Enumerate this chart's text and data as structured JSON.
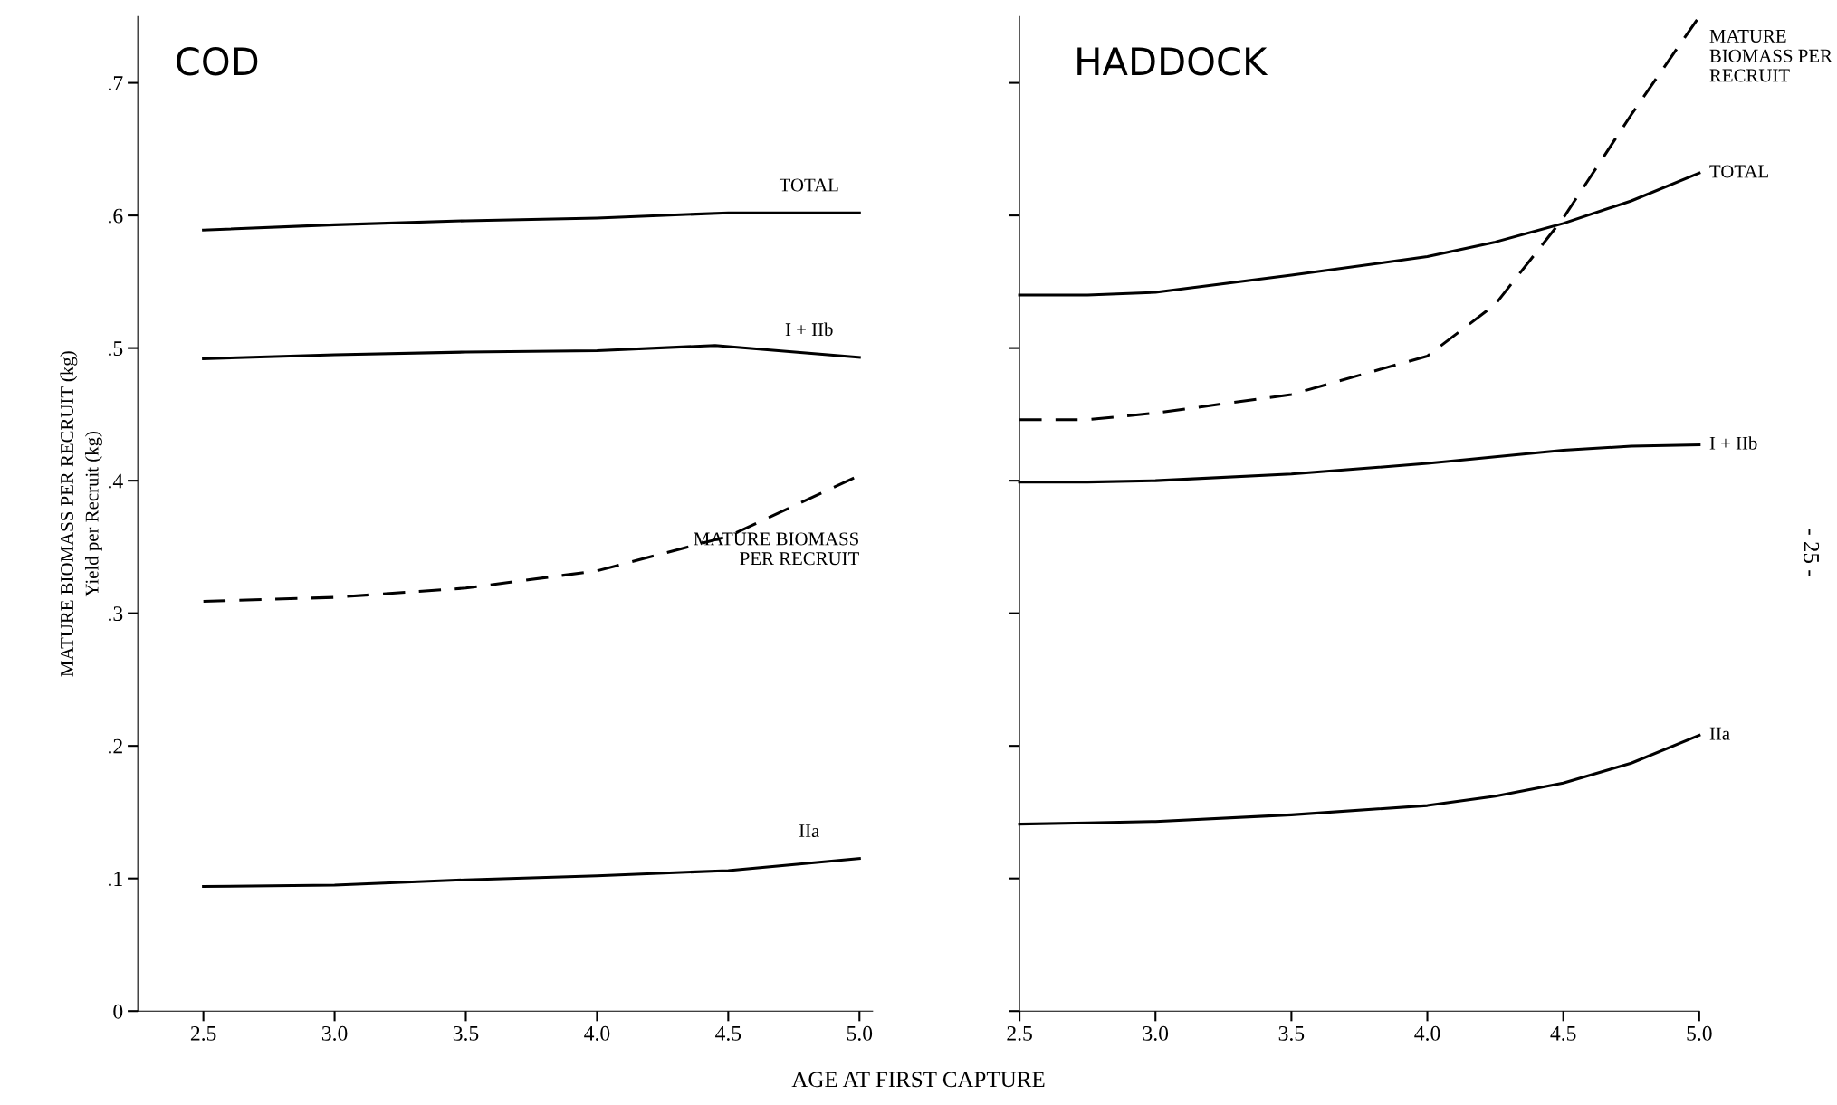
{
  "chart_data": [
    {
      "type": "line",
      "title": "COD",
      "xlabel": "AGE AT FIRST CAPTURE",
      "ylabel": "MATURE BIOMASS PER RECRUIT (kg)\nYield per Recruit (kg)",
      "x": [
        2.5,
        3.0,
        3.5,
        4.0,
        4.5,
        5.0
      ],
      "xlim": [
        2.25,
        5.05
      ],
      "xticks": [
        2.5,
        {
          "value": 3,
          "label": "3.0"
        },
        3.5,
        {
          "value": 4,
          "label": "4.0"
        },
        4.5,
        {
          "value": 5,
          "label": "5.0"
        }
      ],
      "ylim": [
        0,
        0.75
      ],
      "yticks": [
        {
          "value": 0,
          "label": "0"
        },
        {
          "value": 0.1,
          "label": ".1"
        },
        {
          "value": 0.2,
          "label": ".2"
        },
        {
          "value": 0.3,
          "label": ".3"
        },
        {
          "value": 0.4,
          "label": ".4"
        },
        {
          "value": 0.5,
          "label": ".5"
        },
        {
          "value": 0.6,
          "label": ".6"
        },
        {
          "value": 0.7,
          "label": ".7"
        }
      ],
      "grid": false,
      "series": [
        {
          "name": "TOTAL",
          "color": "#000000",
          "line_style": "solid",
          "values": [
            0.589,
            0.593,
            0.596,
            0.598,
            0.602,
            0.602
          ]
        },
        {
          "name": "I + IIb",
          "color": "#000000",
          "line_style": "solid",
          "x": [
            2.5,
            3.0,
            3.5,
            4.0,
            4.45,
            5.0
          ],
          "values": [
            0.492,
            0.495,
            0.497,
            0.498,
            0.502,
            0.493
          ]
        },
        {
          "name": "MATURE BIOMASS\nPER RECRUIT",
          "color": "#000000",
          "line_style": "dashed",
          "values": [
            0.309,
            0.312,
            0.319,
            0.332,
            0.358,
            0.404
          ]
        },
        {
          "name": "IIa",
          "color": "#000000",
          "line_style": "solid",
          "values": [
            0.094,
            0.095,
            0.099,
            0.102,
            0.106,
            0.115
          ]
        }
      ]
    },
    {
      "type": "line",
      "title": "HADDOCK",
      "x": [
        2.5,
        2.75,
        3.0,
        3.5,
        4.0,
        4.25,
        4.5,
        4.75,
        5.0
      ],
      "xlim": [
        2.5,
        5.0
      ],
      "xticks": [
        2.5,
        {
          "value": 3,
          "label": "3.0"
        },
        3.5,
        {
          "value": 4,
          "label": "4.0"
        },
        4.5,
        {
          "value": 5,
          "label": "5.0"
        }
      ],
      "ylim": [
        0,
        0.75
      ],
      "yticks": [
        {
          "value": 0,
          "label": null
        },
        {
          "value": 0.1,
          "label": null
        },
        {
          "value": 0.2,
          "label": null
        },
        {
          "value": 0.3,
          "label": null
        },
        {
          "value": 0.4,
          "label": null
        },
        {
          "value": 0.5,
          "label": null
        },
        {
          "value": 0.6,
          "label": null
        },
        {
          "value": 0.7,
          "label": null
        }
      ],
      "tick_labels": "x",
      "grid": false,
      "annotations": [
        "- 25 -"
      ],
      "series": [
        {
          "name": "MATURE\nBIOMASS PER\nRECRUIT",
          "color": "#000000",
          "line_style": "dashed",
          "values": [
            0.446,
            0.446,
            0.451,
            0.465,
            0.494,
            0.533,
            0.598,
            0.676,
            0.75
          ]
        },
        {
          "name": "TOTAL",
          "color": "#000000",
          "line_style": "solid",
          "values": [
            0.54,
            0.54,
            0.542,
            0.555,
            0.569,
            0.58,
            0.594,
            0.611,
            0.632
          ]
        },
        {
          "name": "I + IIb",
          "color": "#000000",
          "line_style": "solid",
          "values": [
            0.399,
            0.399,
            0.4,
            0.405,
            0.413,
            0.418,
            0.423,
            0.426,
            0.427
          ]
        },
        {
          "name": "IIa",
          "color": "#000000",
          "line_style": "solid",
          "values": [
            0.141,
            0.142,
            0.143,
            0.148,
            0.155,
            0.162,
            0.172,
            0.187,
            0.208
          ]
        }
      ]
    }
  ]
}
